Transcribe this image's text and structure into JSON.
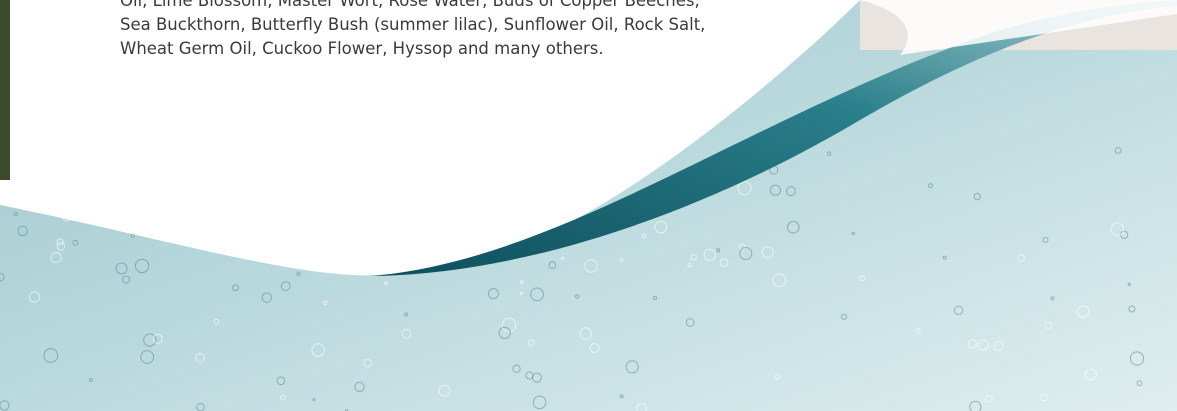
{
  "body_text": {
    "lines": [
      "Oil, Lime Blossom, Master Wort, Rose Water, Buds of Copper Beeches,",
      "Sea Buckthorn, Butterfly Bush (summer lilac), Sunflower Oil, Rock Salt,",
      "Wheat Germ Oil, Cuckoo Flower, Hyssop and many others."
    ]
  }
}
